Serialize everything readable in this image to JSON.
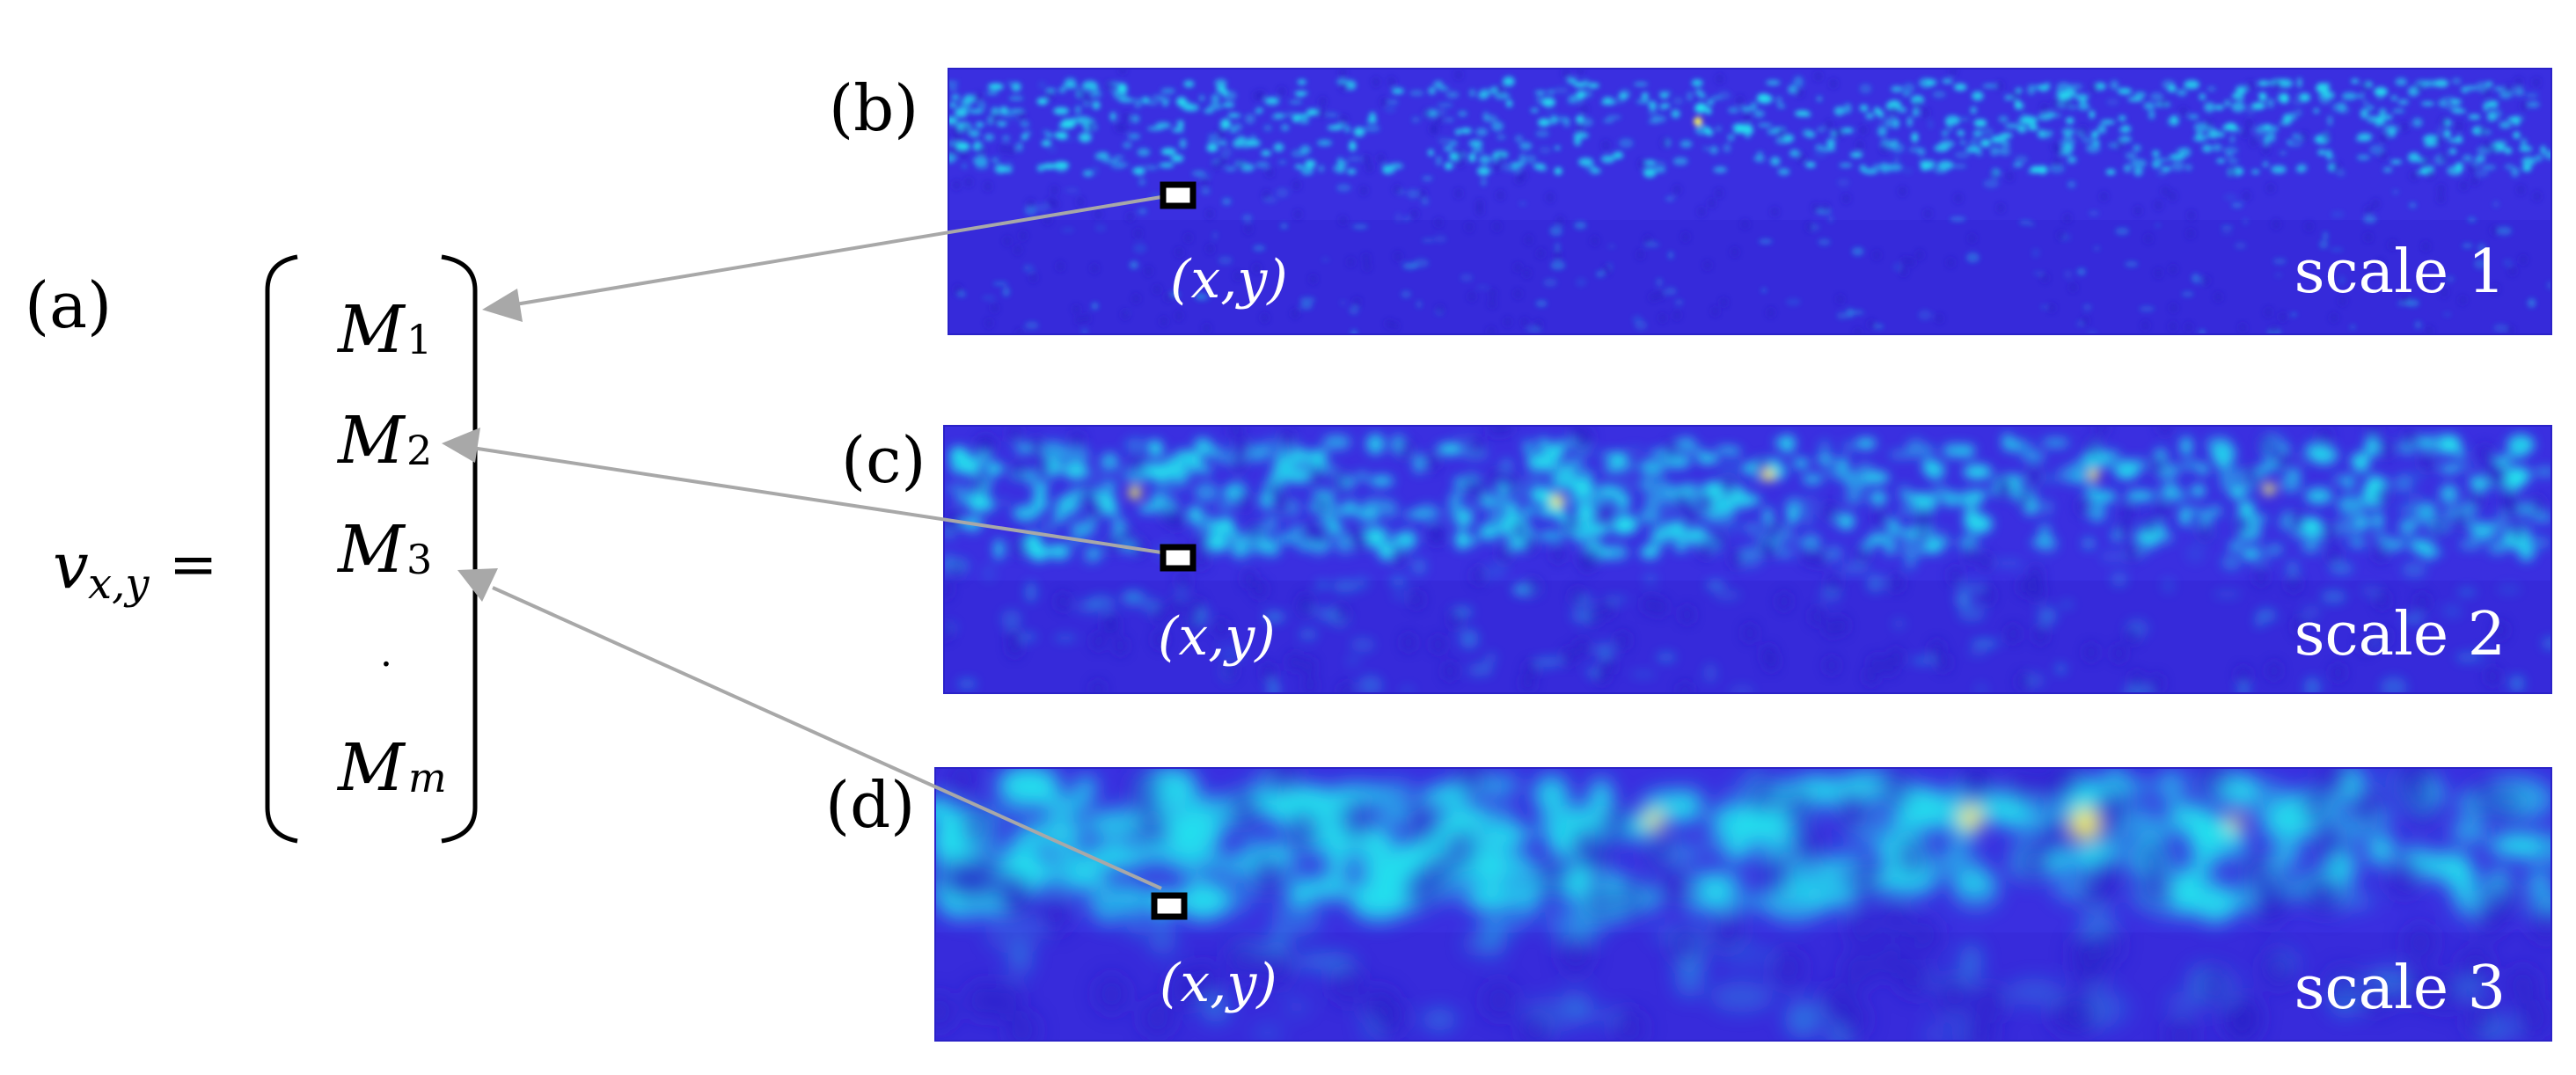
{
  "panel_labels": {
    "a": "(a)",
    "b": "(b)",
    "c": "(c)",
    "d": "(d)"
  },
  "vector": {
    "v": "v",
    "subscript": "x,y",
    "equals": "=",
    "entries": [
      {
        "base": "M",
        "sub": "1"
      },
      {
        "base": "M",
        "sub": "2"
      },
      {
        "base": "M",
        "sub": "3"
      },
      {
        "base": "·",
        "sub": ""
      },
      {
        "base": "M",
        "sub": "m"
      }
    ]
  },
  "scales": [
    {
      "label": "scale 1",
      "coord": "(x,y)"
    },
    {
      "label": "scale 2",
      "coord": "(x,y)"
    },
    {
      "label": "scale 3",
      "coord": "(x,y)"
    }
  ],
  "colors": {
    "background": "#ffffff",
    "map_base": "#3a2fe0",
    "map_dark": "#2a22c8",
    "map_highlight": "#22e3ee",
    "map_hotspot": "#f5f05a",
    "arrow": "#a8a8a8",
    "marker_fill": "#ffffff",
    "marker_stroke": "#000000",
    "text": "#000000",
    "overlay_text": "#ffffff"
  }
}
